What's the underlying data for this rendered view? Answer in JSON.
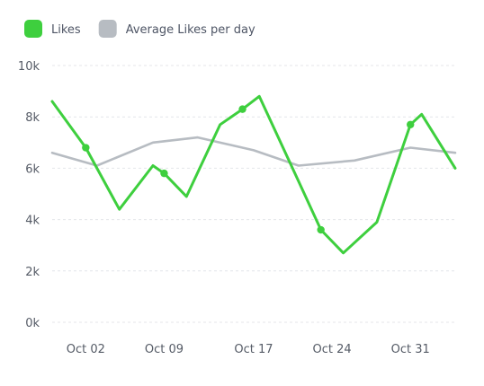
{
  "chart_data": {
    "type": "line",
    "legend": [
      {
        "label": "Likes",
        "color": "#3ecf3e"
      },
      {
        "label": "Average Likes per day",
        "color": "#b7bcc2"
      }
    ],
    "legend_placement": "top-left",
    "y_ticks": [
      "0k",
      "2k",
      "4k",
      "6k",
      "8k",
      "10k"
    ],
    "ylim": [
      0,
      10000
    ],
    "x_ticks": [
      {
        "label": "Oct 02",
        "x": 2
      },
      {
        "label": "Oct 09",
        "x": 9
      },
      {
        "label": "Oct 17",
        "x": 17
      },
      {
        "label": "Oct 24",
        "x": 24
      },
      {
        "label": "Oct 31",
        "x": 31
      }
    ],
    "xlim": [
      -1,
      35
    ],
    "grid": "horizontal dashed",
    "series": [
      {
        "name": "Likes",
        "color": "#3ecf3e",
        "points": [
          {
            "x": -1,
            "y": 8600
          },
          {
            "x": 2,
            "y": 6800
          },
          {
            "x": 5,
            "y": 4400
          },
          {
            "x": 8,
            "y": 6100
          },
          {
            "x": 9,
            "y": 5800
          },
          {
            "x": 11,
            "y": 4900
          },
          {
            "x": 14,
            "y": 7700
          },
          {
            "x": 16,
            "y": 8300
          },
          {
            "x": 17.5,
            "y": 8800
          },
          {
            "x": 21,
            "y": 5500
          },
          {
            "x": 23,
            "y": 3600
          },
          {
            "x": 25,
            "y": 2700
          },
          {
            "x": 28,
            "y": 3900
          },
          {
            "x": 31,
            "y": 7700
          },
          {
            "x": 32,
            "y": 8100
          },
          {
            "x": 35,
            "y": 6000
          }
        ],
        "markers": [
          {
            "x": 2,
            "y": 6800
          },
          {
            "x": 9,
            "y": 5800
          },
          {
            "x": 16,
            "y": 8300
          },
          {
            "x": 23,
            "y": 3600
          },
          {
            "x": 31,
            "y": 7700
          }
        ]
      },
      {
        "name": "Average Likes per day",
        "color": "#b7bcc2",
        "points": [
          {
            "x": -1,
            "y": 6600
          },
          {
            "x": 3,
            "y": 6100
          },
          {
            "x": 8,
            "y": 7000
          },
          {
            "x": 12,
            "y": 7200
          },
          {
            "x": 17,
            "y": 6700
          },
          {
            "x": 21,
            "y": 6100
          },
          {
            "x": 26,
            "y": 6300
          },
          {
            "x": 31,
            "y": 6800
          },
          {
            "x": 35,
            "y": 6600
          }
        ],
        "markers": []
      }
    ]
  }
}
